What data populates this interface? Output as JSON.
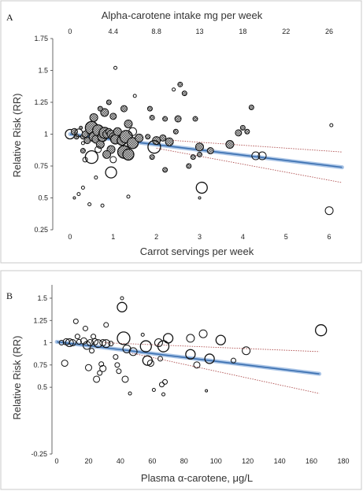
{
  "chart_data": [
    {
      "type": "scatter",
      "panel_label": "A",
      "title": "Alpha-carotene intake mg per week",
      "xlabel": "Carrot servings per week",
      "ylabel": "Relative Risk (RR)",
      "xlim": [
        -0.4,
        6.4
      ],
      "ylim": [
        0.25,
        1.75
      ],
      "x_ticks": [
        0,
        1,
        2,
        3,
        4,
        5,
        6
      ],
      "y_ticks": [
        0.25,
        0.5,
        0.75,
        1,
        1.25,
        1.5,
        1.75
      ],
      "y_tick_labels": [
        "0.25",
        "0.5",
        "0.75",
        "1",
        "1.25",
        "1.5",
        "1.75"
      ],
      "top_axis": {
        "values": [
          0,
          4.4,
          8.8,
          13,
          18,
          22,
          26
        ],
        "positions": [
          0,
          1,
          2,
          3,
          4,
          5,
          6
        ]
      },
      "trend": {
        "x0": 0,
        "y0": 1.0,
        "x1": 6.3,
        "y1": 0.74
      },
      "ci_upper": {
        "x0": 2.0,
        "y0": 0.96,
        "x1": 6.3,
        "y1": 0.86
      },
      "ci_lower": {
        "x0": 2.0,
        "y0": 0.89,
        "x1": 6.3,
        "y1": 0.62
      },
      "points": [
        {
          "x": 0.0,
          "y": 1.0,
          "s": 6,
          "f": "o"
        },
        {
          "x": 0.1,
          "y": 1.02,
          "s": 4,
          "f": "h"
        },
        {
          "x": 0.15,
          "y": 0.98,
          "s": 3,
          "f": "h"
        },
        {
          "x": 0.2,
          "y": 1.01,
          "s": 5,
          "f": "o"
        },
        {
          "x": 0.25,
          "y": 1.05,
          "s": 2,
          "f": "h"
        },
        {
          "x": 0.3,
          "y": 0.98,
          "s": 3,
          "f": "h"
        },
        {
          "x": 0.35,
          "y": 1.0,
          "s": 4,
          "f": "h"
        },
        {
          "x": 0.4,
          "y": 0.95,
          "s": 4,
          "f": "h"
        },
        {
          "x": 0.45,
          "y": 1.02,
          "s": 3,
          "f": "h"
        },
        {
          "x": 0.5,
          "y": 1.05,
          "s": 8,
          "f": "h"
        },
        {
          "x": 0.55,
          "y": 0.98,
          "s": 6,
          "f": "h"
        },
        {
          "x": 0.6,
          "y": 0.96,
          "s": 5,
          "f": "h"
        },
        {
          "x": 0.65,
          "y": 1.03,
          "s": 7,
          "f": "h"
        },
        {
          "x": 0.7,
          "y": 0.92,
          "s": 5,
          "f": "h"
        },
        {
          "x": 0.75,
          "y": 0.98,
          "s": 6,
          "f": "h"
        },
        {
          "x": 0.8,
          "y": 1.01,
          "s": 7,
          "f": "h"
        },
        {
          "x": 0.85,
          "y": 1.0,
          "s": 5,
          "f": "h"
        },
        {
          "x": 0.9,
          "y": 1.02,
          "s": 4,
          "f": "h"
        },
        {
          "x": 0.95,
          "y": 1.0,
          "s": 5,
          "f": "h"
        },
        {
          "x": 1.0,
          "y": 0.98,
          "s": 5,
          "f": "h"
        },
        {
          "x": 1.05,
          "y": 0.96,
          "s": 6,
          "f": "h"
        },
        {
          "x": 1.1,
          "y": 1.02,
          "s": 5,
          "f": "h"
        },
        {
          "x": 1.2,
          "y": 0.95,
          "s": 6,
          "f": "h"
        },
        {
          "x": 1.3,
          "y": 0.98,
          "s": 8,
          "f": "h"
        },
        {
          "x": 1.35,
          "y": 1.08,
          "s": 5,
          "f": "h"
        },
        {
          "x": 1.45,
          "y": 0.93,
          "s": 7,
          "f": "h"
        },
        {
          "x": 1.6,
          "y": 0.97,
          "s": 5,
          "f": "h"
        },
        {
          "x": 1.8,
          "y": 0.98,
          "s": 3,
          "f": "h"
        },
        {
          "x": 2.0,
          "y": 0.95,
          "s": 5,
          "f": "h"
        },
        {
          "x": 2.15,
          "y": 0.97,
          "s": 4,
          "f": "h"
        },
        {
          "x": 2.3,
          "y": 0.94,
          "s": 5,
          "f": "h"
        },
        {
          "x": 0.95,
          "y": 0.88,
          "s": 5,
          "f": "h"
        },
        {
          "x": 0.85,
          "y": 0.84,
          "s": 5,
          "f": "h"
        },
        {
          "x": 1.25,
          "y": 0.86,
          "s": 8,
          "f": "h"
        },
        {
          "x": 1.35,
          "y": 0.84,
          "s": 7,
          "f": "h"
        },
        {
          "x": 0.3,
          "y": 0.87,
          "s": 3,
          "f": "h"
        },
        {
          "x": 0.55,
          "y": 1.13,
          "s": 5,
          "f": "h"
        },
        {
          "x": 0.8,
          "y": 1.17,
          "s": 5,
          "f": "h"
        },
        {
          "x": 1.0,
          "y": 1.14,
          "s": 4,
          "f": "h"
        },
        {
          "x": 1.25,
          "y": 1.2,
          "s": 4,
          "f": "h"
        },
        {
          "x": 0.7,
          "y": 1.2,
          "s": 3,
          "f": "h"
        },
        {
          "x": 0.9,
          "y": 1.25,
          "s": 3,
          "f": "h"
        },
        {
          "x": 1.85,
          "y": 1.2,
          "s": 3,
          "f": "h"
        },
        {
          "x": 1.9,
          "y": 1.13,
          "s": 3,
          "f": "h"
        },
        {
          "x": 2.2,
          "y": 1.12,
          "s": 3,
          "f": "h"
        },
        {
          "x": 2.55,
          "y": 1.39,
          "s": 3,
          "f": "h"
        },
        {
          "x": 2.5,
          "y": 1.12,
          "s": 4,
          "f": "h"
        },
        {
          "x": 2.45,
          "y": 1.02,
          "s": 3,
          "f": "h"
        },
        {
          "x": 2.65,
          "y": 1.32,
          "s": 3,
          "f": "h"
        },
        {
          "x": 2.9,
          "y": 1.12,
          "s": 3,
          "f": "h"
        },
        {
          "x": 3.0,
          "y": 0.9,
          "s": 5,
          "f": "h"
        },
        {
          "x": 3.0,
          "y": 0.84,
          "s": 3,
          "f": "h"
        },
        {
          "x": 3.25,
          "y": 0.87,
          "s": 4,
          "f": "h"
        },
        {
          "x": 3.7,
          "y": 0.92,
          "s": 5,
          "f": "h"
        },
        {
          "x": 3.9,
          "y": 1.01,
          "s": 4,
          "f": "h"
        },
        {
          "x": 4.1,
          "y": 1.02,
          "s": 3,
          "f": "h"
        },
        {
          "x": 4.2,
          "y": 1.21,
          "s": 3,
          "f": "h"
        },
        {
          "x": 4.0,
          "y": 1.05,
          "s": 3,
          "f": "h"
        },
        {
          "x": 2.75,
          "y": 0.75,
          "s": 3,
          "f": "h"
        },
        {
          "x": 2.85,
          "y": 0.82,
          "s": 3,
          "f": "h"
        },
        {
          "x": 1.9,
          "y": 0.82,
          "s": 3,
          "f": "h"
        },
        {
          "x": 2.2,
          "y": 0.72,
          "s": 3,
          "f": "h"
        },
        {
          "x": 1.45,
          "y": 1.02,
          "s": 5,
          "f": "o"
        },
        {
          "x": 0.65,
          "y": 0.88,
          "s": 4,
          "f": "o"
        },
        {
          "x": 1.0,
          "y": 0.8,
          "s": 4,
          "f": "o"
        },
        {
          "x": 0.35,
          "y": 0.8,
          "s": 3,
          "f": "o"
        },
        {
          "x": 0.3,
          "y": 0.93,
          "s": 2,
          "f": "o"
        },
        {
          "x": 0.5,
          "y": 0.82,
          "s": 8,
          "f": "o"
        },
        {
          "x": 0.95,
          "y": 0.7,
          "s": 7,
          "f": "o"
        },
        {
          "x": 1.95,
          "y": 0.9,
          "s": 8,
          "f": "o"
        },
        {
          "x": 3.05,
          "y": 0.58,
          "s": 7,
          "f": "o"
        },
        {
          "x": 4.3,
          "y": 0.83,
          "s": 5,
          "f": "o"
        },
        {
          "x": 4.45,
          "y": 0.83,
          "s": 5,
          "f": "o"
        },
        {
          "x": 6.0,
          "y": 0.4,
          "s": 5,
          "f": "o"
        },
        {
          "x": 6.05,
          "y": 1.07,
          "s": 2,
          "f": "o"
        },
        {
          "x": 1.05,
          "y": 1.52,
          "s": 2,
          "f": "o"
        },
        {
          "x": 0.3,
          "y": 0.58,
          "s": 2,
          "f": "o"
        },
        {
          "x": 0.2,
          "y": 0.53,
          "s": 2,
          "f": "o"
        },
        {
          "x": 0.45,
          "y": 0.45,
          "s": 2,
          "f": "o"
        },
        {
          "x": 0.75,
          "y": 0.44,
          "s": 2,
          "f": "o"
        },
        {
          "x": 0.1,
          "y": 0.5,
          "s": 1.5,
          "f": "o"
        },
        {
          "x": 1.35,
          "y": 0.51,
          "s": 2,
          "f": "o"
        },
        {
          "x": 3.0,
          "y": 0.5,
          "s": 1.5,
          "f": "o"
        },
        {
          "x": 0.6,
          "y": 0.66,
          "s": 2,
          "f": "o"
        },
        {
          "x": 1.5,
          "y": 1.3,
          "s": 2,
          "f": "o"
        },
        {
          "x": 2.4,
          "y": 1.35,
          "s": 2,
          "f": "o"
        }
      ]
    },
    {
      "type": "scatter",
      "panel_label": "B",
      "xlabel": "Plasma α-carotene, μg/L",
      "ylabel": "Relative Risk (RR)",
      "xlim": [
        -3,
        182
      ],
      "ylim": [
        -0.25,
        1.65
      ],
      "x_ticks": [
        0,
        20,
        40,
        60,
        80,
        100,
        120,
        140,
        160,
        180
      ],
      "y_ticks": [
        -0.25,
        0.5,
        0.75,
        1,
        1.25,
        1.5
      ],
      "y_tick_labels": [
        "-0.25",
        "0.5",
        "0.75",
        "1",
        "1.25",
        "1.5"
      ],
      "trend": {
        "x0": 0,
        "y0": 1.01,
        "x1": 165,
        "y1": 0.65
      },
      "ci_upper": {
        "x0": 30,
        "y0": 1.0,
        "x1": 165,
        "y1": 0.9
      },
      "ci_lower": {
        "x0": 30,
        "y0": 0.95,
        "x1": 165,
        "y1": 0.43
      },
      "points": [
        {
          "x": 3,
          "y": 1.0,
          "s": 3,
          "f": "o"
        },
        {
          "x": 6,
          "y": 1.01,
          "s": 4,
          "f": "o"
        },
        {
          "x": 8,
          "y": 1.0,
          "s": 5,
          "f": "o"
        },
        {
          "x": 10,
          "y": 1.0,
          "s": 4,
          "f": "o"
        },
        {
          "x": 14,
          "y": 1.01,
          "s": 3,
          "f": "o"
        },
        {
          "x": 17,
          "y": 1.02,
          "s": 4,
          "f": "o"
        },
        {
          "x": 19,
          "y": 0.97,
          "s": 5,
          "f": "o"
        },
        {
          "x": 21,
          "y": 1.0,
          "s": 4,
          "f": "o"
        },
        {
          "x": 24,
          "y": 1.01,
          "s": 4,
          "f": "o"
        },
        {
          "x": 26,
          "y": 0.99,
          "s": 5,
          "f": "o"
        },
        {
          "x": 29,
          "y": 1.0,
          "s": 4,
          "f": "o"
        },
        {
          "x": 31,
          "y": 0.99,
          "s": 5,
          "f": "o"
        },
        {
          "x": 5,
          "y": 0.77,
          "s": 4,
          "f": "o"
        },
        {
          "x": 12,
          "y": 1.24,
          "s": 3,
          "f": "o"
        },
        {
          "x": 18,
          "y": 1.16,
          "s": 3,
          "f": "o"
        },
        {
          "x": 13,
          "y": 1.07,
          "s": 3,
          "f": "o"
        },
        {
          "x": 23,
          "y": 1.07,
          "s": 3,
          "f": "o"
        },
        {
          "x": 22,
          "y": 0.91,
          "s": 3,
          "f": "o"
        },
        {
          "x": 31,
          "y": 1.2,
          "s": 3,
          "f": "o"
        },
        {
          "x": 34,
          "y": 0.99,
          "s": 3,
          "f": "o"
        },
        {
          "x": 37,
          "y": 0.84,
          "s": 3,
          "f": "o"
        },
        {
          "x": 38,
          "y": 0.75,
          "s": 3,
          "f": "o"
        },
        {
          "x": 39,
          "y": 0.68,
          "s": 3,
          "f": "o"
        },
        {
          "x": 20,
          "y": 0.72,
          "s": 4,
          "f": "o"
        },
        {
          "x": 28,
          "y": 0.76,
          "s": 3,
          "f": "o"
        },
        {
          "x": 29,
          "y": 0.71,
          "s": 4,
          "f": "o"
        },
        {
          "x": 27,
          "y": 0.66,
          "s": 3,
          "f": "o"
        },
        {
          "x": 25,
          "y": 0.59,
          "s": 4,
          "f": "o"
        },
        {
          "x": 43,
          "y": 0.59,
          "s": 4,
          "f": "o"
        },
        {
          "x": 41,
          "y": 1.4,
          "s": 6,
          "f": "o"
        },
        {
          "x": 41,
          "y": 1.5,
          "s": 2,
          "f": "o"
        },
        {
          "x": 42,
          "y": 1.05,
          "s": 8,
          "f": "o"
        },
        {
          "x": 44,
          "y": 0.93,
          "s": 5,
          "f": "o"
        },
        {
          "x": 48,
          "y": 0.9,
          "s": 5,
          "f": "o"
        },
        {
          "x": 46,
          "y": 0.43,
          "s": 2,
          "f": "o"
        },
        {
          "x": 54,
          "y": 1.09,
          "s": 2,
          "f": "o"
        },
        {
          "x": 56,
          "y": 0.96,
          "s": 7,
          "f": "o"
        },
        {
          "x": 57,
          "y": 0.8,
          "s": 6,
          "f": "o"
        },
        {
          "x": 59,
          "y": 0.77,
          "s": 4,
          "f": "o"
        },
        {
          "x": 61,
          "y": 0.47,
          "s": 2,
          "f": "o"
        },
        {
          "x": 64,
          "y": 1.0,
          "s": 5,
          "f": "o"
        },
        {
          "x": 65,
          "y": 0.82,
          "s": 3,
          "f": "o"
        },
        {
          "x": 66,
          "y": 0.53,
          "s": 3,
          "f": "o"
        },
        {
          "x": 67,
          "y": 0.42,
          "s": 2,
          "f": "o"
        },
        {
          "x": 68,
          "y": 0.56,
          "s": 3,
          "f": "o"
        },
        {
          "x": 67,
          "y": 0.96,
          "s": 7,
          "f": "o"
        },
        {
          "x": 70,
          "y": 1.05,
          "s": 6,
          "f": "o"
        },
        {
          "x": 84,
          "y": 1.05,
          "s": 5,
          "f": "o"
        },
        {
          "x": 84,
          "y": 0.87,
          "s": 6,
          "f": "o"
        },
        {
          "x": 88,
          "y": 0.75,
          "s": 4,
          "f": "o"
        },
        {
          "x": 92,
          "y": 1.1,
          "s": 5,
          "f": "o"
        },
        {
          "x": 96,
          "y": 0.82,
          "s": 6,
          "f": "o"
        },
        {
          "x": 94,
          "y": 0.46,
          "s": 1.5,
          "f": "o"
        },
        {
          "x": 103,
          "y": 1.03,
          "s": 6,
          "f": "o"
        },
        {
          "x": 111,
          "y": 0.8,
          "s": 3,
          "f": "o"
        },
        {
          "x": 119,
          "y": 0.91,
          "s": 5,
          "f": "o"
        },
        {
          "x": 166,
          "y": 1.14,
          "s": 7,
          "f": "o"
        }
      ]
    }
  ]
}
